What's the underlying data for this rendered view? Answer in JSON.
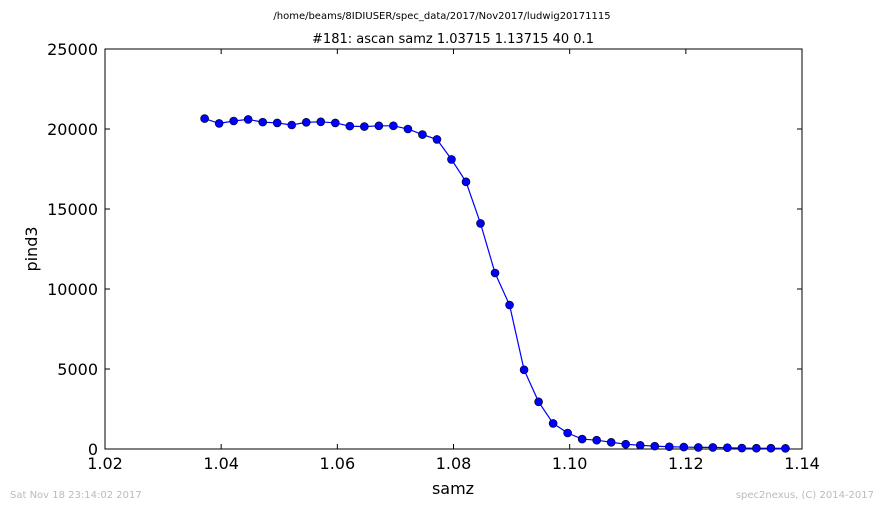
{
  "footer": {
    "timestamp": "Sat Nov 18 23:14:02 2017",
    "credit": "spec2nexus, (C) 2014-2017"
  },
  "colors": {
    "series": "#0000ff",
    "marker": "#0000ff",
    "axis": "#000000",
    "footer_text": "#bbbbbb"
  },
  "chart_data": {
    "type": "line",
    "title": "#181: ascan  samz 1.03715 1.13715  40 0.1",
    "subtitle": "/home/beams/8IDIUSER/spec_data/2017/Nov2017/ludwig20171115",
    "xlabel": "samz",
    "ylabel": "pind3",
    "xlim": [
      1.02,
      1.14
    ],
    "ylim": [
      0,
      25000
    ],
    "xticks": [
      "1.02",
      "1.04",
      "1.06",
      "1.08",
      "1.10",
      "1.12",
      "1.14"
    ],
    "yticks": [
      "0",
      "5000",
      "10000",
      "15000",
      "20000",
      "25000"
    ],
    "grid": false,
    "series": [
      {
        "x": [
          1.03715,
          1.03965,
          1.04215,
          1.04465,
          1.04715,
          1.04965,
          1.05215,
          1.05465,
          1.05715,
          1.05965,
          1.06215,
          1.06465,
          1.06715,
          1.06965,
          1.07215,
          1.07465,
          1.07715,
          1.07965,
          1.08215,
          1.08465,
          1.08715,
          1.08965,
          1.09215,
          1.09465,
          1.09715,
          1.09965,
          1.10215,
          1.10465,
          1.10715,
          1.10965,
          1.11215,
          1.11465,
          1.11715,
          1.11965,
          1.12215,
          1.12465,
          1.12715,
          1.12965,
          1.13215,
          1.13465,
          1.13715
        ],
        "y": [
          20650,
          20350,
          20500,
          20600,
          20430,
          20380,
          20250,
          20420,
          20450,
          20380,
          20180,
          20150,
          20200,
          20200,
          20000,
          19650,
          19350,
          18100,
          16700,
          14100,
          11000,
          9000,
          4950,
          2950,
          1600,
          1000,
          620,
          550,
          420,
          300,
          230,
          180,
          140,
          120,
          100,
          100,
          80,
          60,
          50,
          50,
          40
        ]
      }
    ]
  }
}
